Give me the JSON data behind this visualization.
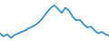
{
  "x": [
    0,
    1,
    2,
    3,
    4,
    5,
    6,
    7,
    8,
    9,
    10,
    11,
    12,
    13,
    14,
    15,
    16,
    17,
    18,
    19,
    20,
    21,
    22,
    23,
    24,
    25,
    26,
    27,
    28,
    29,
    30
  ],
  "y": [
    28,
    24,
    27,
    22,
    26,
    28,
    30,
    32,
    35,
    37,
    40,
    44,
    50,
    56,
    62,
    65,
    60,
    55,
    62,
    58,
    50,
    45,
    46,
    40,
    36,
    37,
    32,
    28,
    30,
    27,
    25
  ],
  "line_color": "#2b8ac6",
  "linewidth": 1.2,
  "background_color": "#ffffff",
  "ylim": [
    18,
    72
  ],
  "xlim": [
    0,
    30
  ]
}
